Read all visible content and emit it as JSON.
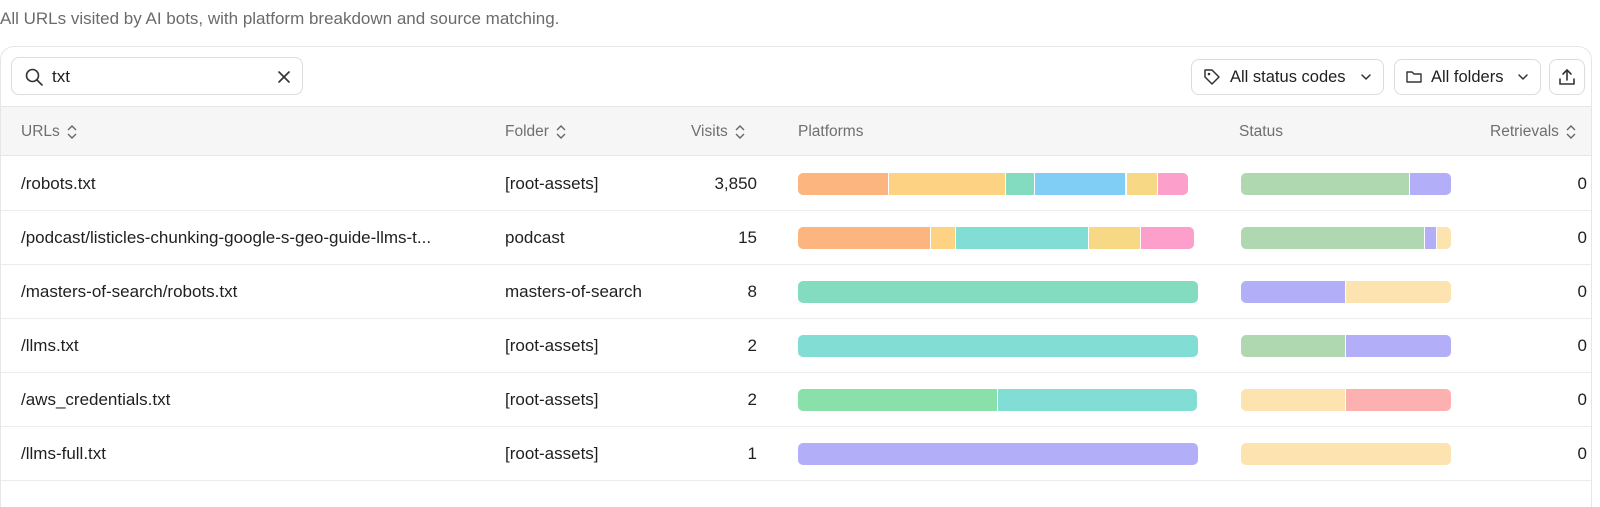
{
  "subtitle": "All URLs visited by AI bots, with platform breakdown and source matching.",
  "search": {
    "value": "txt",
    "icon": "search-icon",
    "clear_icon": "close-icon"
  },
  "filters": {
    "status": {
      "label": "All status codes",
      "icon": "tag-icon"
    },
    "folders": {
      "label": "All folders",
      "icon": "folder-icon"
    },
    "export_icon": "upload-icon"
  },
  "columns": {
    "urls": "URLs",
    "folder": "Folder",
    "visits": "Visits",
    "platforms": "Platforms",
    "status": "Status",
    "retrievals": "Retrievals"
  },
  "colors": {
    "orange": "#fdb57f",
    "yellow": "#fdd282",
    "mint": "#84dcc0",
    "sky": "#80cdf6",
    "gold": "#f7d884",
    "pink": "#fca0cb",
    "teal": "#82ddd4",
    "green": "#89e0a8",
    "lavender": "#b2aff8",
    "sage": "#b0d8b0",
    "cream": "#fde3b0",
    "rose": "#fcb1b0"
  },
  "rows": [
    {
      "url": "/robots.txt",
      "folder": "[root-assets]",
      "visits": "3,850",
      "retrievals": "0",
      "platforms_fill": 0.976,
      "platforms": [
        {
          "color": "#fdb57f",
          "share": 0.232
        },
        {
          "color": "#fdd282",
          "share": 0.302
        },
        {
          "color": "#84dcc0",
          "share": 0.073
        },
        {
          "color": "#80cdf6",
          "share": 0.232
        },
        {
          "color": "#fdd282",
          "share": 0.005
        },
        {
          "color": "#f7d884",
          "share": 0.078
        },
        {
          "color": "#fca0cb",
          "share": 0.078
        }
      ],
      "status": [
        {
          "color": "#b0d8b0",
          "share": 0.805
        },
        {
          "color": "#b2aff8",
          "share": 0.195
        }
      ]
    },
    {
      "url": "/podcast/listicles-chunking-google-s-geo-guide-llms-t...",
      "folder": "podcast",
      "visits": "15",
      "retrievals": "0",
      "platforms_fill": 0.99,
      "platforms": [
        {
          "color": "#fdb57f",
          "share": 0.335
        },
        {
          "color": "#fdd282",
          "share": 0.065
        },
        {
          "color": "#82ddd4",
          "share": 0.336
        },
        {
          "color": "#f7d884",
          "share": 0.13
        },
        {
          "color": "#fca0cb",
          "share": 0.134
        }
      ],
      "status": [
        {
          "color": "#b0d8b0",
          "share": 0.875
        },
        {
          "color": "#b2aff8",
          "share": 0.06
        },
        {
          "color": "#fde3b0",
          "share": 0.065
        }
      ]
    },
    {
      "url": "/masters-of-search/robots.txt",
      "folder": "masters-of-search",
      "visits": "8",
      "retrievals": "0",
      "platforms_fill": 1,
      "platforms": [
        {
          "color": "#84dcc0",
          "share": 1
        }
      ],
      "status": [
        {
          "color": "#b2aff8",
          "share": 0.5
        },
        {
          "color": "#fde3b0",
          "share": 0.5
        }
      ]
    },
    {
      "url": "/llms.txt",
      "folder": "[root-assets]",
      "visits": "2",
      "retrievals": "0",
      "platforms_fill": 1,
      "platforms": [
        {
          "color": "#82ddd4",
          "share": 1
        }
      ],
      "status": [
        {
          "color": "#b0d8b0",
          "share": 0.5
        },
        {
          "color": "#b2aff8",
          "share": 0.5
        }
      ]
    },
    {
      "url": "/aws_credentials.txt",
      "folder": "[root-assets]",
      "visits": "2",
      "retrievals": "0",
      "platforms_fill": 0.998,
      "platforms": [
        {
          "color": "#89e0a8",
          "share": 0.5
        },
        {
          "color": "#82ddd4",
          "share": 0.5
        }
      ],
      "status": [
        {
          "color": "#fde3b0",
          "share": 0.5
        },
        {
          "color": "#fcb1b0",
          "share": 0.5
        }
      ]
    },
    {
      "url": "/llms-full.txt",
      "folder": "[root-assets]",
      "visits": "1",
      "retrievals": "0",
      "platforms_fill": 1,
      "platforms": [
        {
          "color": "#b2aff8",
          "share": 1
        }
      ],
      "status": [
        {
          "color": "#fde3b0",
          "share": 1
        }
      ]
    }
  ]
}
